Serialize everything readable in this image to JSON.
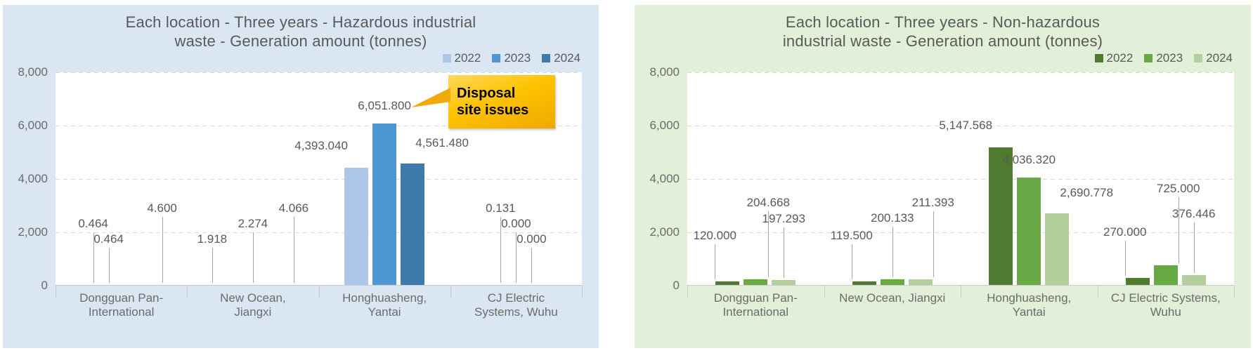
{
  "chart_data": [
    {
      "type": "bar",
      "title": "Each location - Three years - Hazardous industrial\nwaste - Generation amount (tonnes)",
      "unit": "tonnes",
      "legend_position": "top-right",
      "grid": "dashed-horizontal",
      "categories": [
        "Dongguan Pan-\nInternational",
        "New Ocean,\nJiangxi",
        "Honghuasheng,\nYantai",
        "CJ Electric\nSystems, Wuhu"
      ],
      "series": [
        {
          "name": "2022",
          "color": "#aec6e8",
          "values": [
            0.464,
            1.918,
            4393.04,
            0.131
          ],
          "labels": [
            "0.464",
            "1.918",
            "4,393.040",
            "0.131"
          ]
        },
        {
          "name": "2023",
          "color": "#4f97d4",
          "values": [
            0.464,
            2.274,
            6051.8,
            0.0
          ],
          "labels": [
            "0.464",
            "2.274",
            "6,051.800",
            "0.000"
          ]
        },
        {
          "name": "2024",
          "color": "#3f7aad",
          "values": [
            4.6,
            4.066,
            4561.48,
            0.0
          ],
          "labels": [
            "4.600",
            "4.066",
            "4,561.480",
            "0.000"
          ]
        }
      ],
      "y_axis": {
        "min": 0,
        "max": 8000,
        "ticks": [
          {
            "value": 0,
            "label": "0"
          },
          {
            "value": 2000,
            "label": "2,000"
          },
          {
            "value": 4000,
            "label": "4,000"
          },
          {
            "value": 6000,
            "label": "6,000"
          },
          {
            "value": 8000,
            "label": "8,000"
          }
        ]
      },
      "annotation": {
        "text": "Disposal\nsite issues",
        "points_to_label": "6,051.800",
        "bg": "#fdc300"
      },
      "colors": {
        "card_bg": "#dbe6f3",
        "plot_bg": "#ffffff",
        "text": "#595959"
      }
    },
    {
      "type": "bar",
      "title": "Each location - Three years - Non-hazardous\nindustrial waste - Generation amount (tonnes)",
      "unit": "tonnes",
      "legend_position": "top-right",
      "grid": "dashed-horizontal",
      "categories": [
        "Dongguan Pan-\nInternational",
        "New Ocean, Jiangxi",
        "Honghuasheng,\nYantai",
        "CJ Electric Systems,\nWuhu"
      ],
      "series": [
        {
          "name": "2022",
          "color": "#4f7b31",
          "values": [
            120.0,
            119.5,
            5147.568,
            270.0
          ],
          "labels": [
            "120.000",
            "119.500",
            "5,147.568",
            "270.000"
          ]
        },
        {
          "name": "2023",
          "color": "#69a945",
          "values": [
            204.668,
            200.133,
            4036.32,
            725.0
          ],
          "labels": [
            "204.668",
            "200.133",
            "4,036.320",
            "725.000"
          ]
        },
        {
          "name": "2024",
          "color": "#b3cf9e",
          "values": [
            197.293,
            211.393,
            2690.778,
            376.446
          ],
          "labels": [
            "197.293",
            "211.393",
            "2,690.778",
            "376.446"
          ]
        }
      ],
      "y_axis": {
        "min": 0,
        "max": 8000,
        "ticks": [
          {
            "value": 0,
            "label": "0"
          },
          {
            "value": 2000,
            "label": "2,000"
          },
          {
            "value": 4000,
            "label": "4,000"
          },
          {
            "value": 6000,
            "label": "6,000"
          },
          {
            "value": 8000,
            "label": "8,000"
          }
        ]
      },
      "colors": {
        "card_bg": "#e2efd9",
        "plot_bg": "#ffffff",
        "text": "#595959"
      }
    }
  ]
}
